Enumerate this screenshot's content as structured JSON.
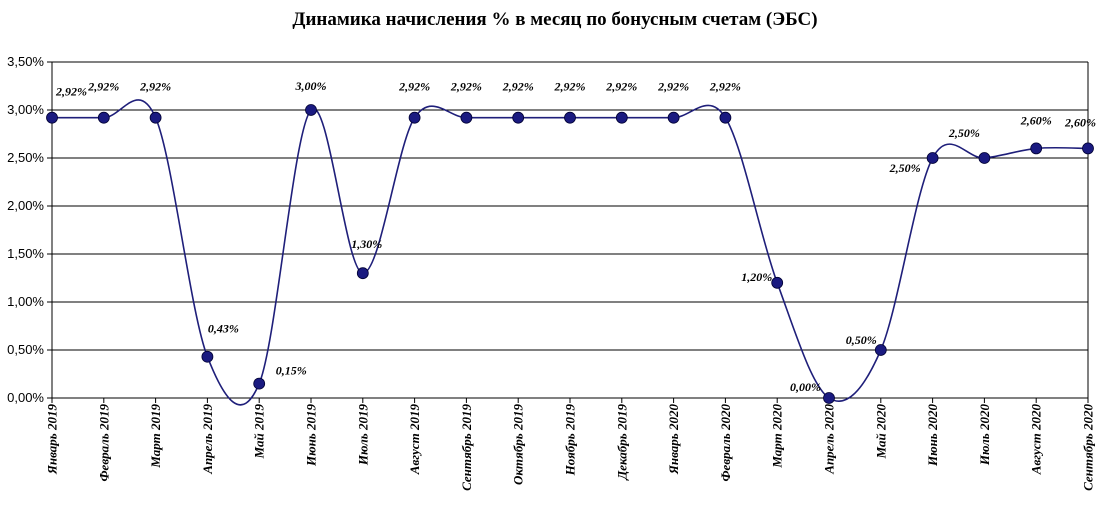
{
  "chart_data": {
    "type": "line",
    "title": "Динамика начисления % в месяц по бонусным счетам (ЭБС)",
    "xlabel": "",
    "ylabel": "",
    "ylim": [
      0,
      3.5
    ],
    "yticks": [
      "0,00%",
      "0,50%",
      "1,00%",
      "1,50%",
      "2,00%",
      "2,50%",
      "3,00%",
      "3,50%"
    ],
    "grid": true,
    "smooth": true,
    "line_color": "#1f1f7a",
    "marker_color": "#1a1a80",
    "categories": [
      "Январь 2019",
      "Февраль 2019",
      "Март 2019",
      "Апрель 2019",
      "Май 2019",
      "Июнь 2019",
      "Июль 2019",
      "Август 2019",
      "Сентябрь 2019",
      "Октябрь 2019",
      "Ноябрь 2019",
      "Декабрь 2019",
      "Январь 2020",
      "Февраль 2020",
      "Март 2020",
      "Апрель 2020",
      "Май 2020",
      "Июнь 2020",
      "Июль 2020",
      "Август 2020",
      "Сентябрь 2020"
    ],
    "values": [
      2.92,
      2.92,
      2.92,
      0.43,
      0.15,
      3.0,
      1.3,
      2.92,
      2.92,
      2.92,
      2.92,
      2.92,
      2.92,
      2.92,
      1.2,
      0.0,
      0.5,
      2.5,
      2.5,
      2.6,
      2.6
    ],
    "data_labels": [
      "2,92%",
      "2,92%",
      "2,92%",
      "0,43%",
      "0,15%",
      "3,00%",
      "1,30%",
      "2,92%",
      "2,92%",
      "2,92%",
      "2,92%",
      "2,92%",
      "2,92%",
      "2,92%",
      "1,20%",
      "0,00%",
      "0,50%",
      "2,50%",
      "2,50%",
      "2,60%",
      "2,60%"
    ]
  }
}
